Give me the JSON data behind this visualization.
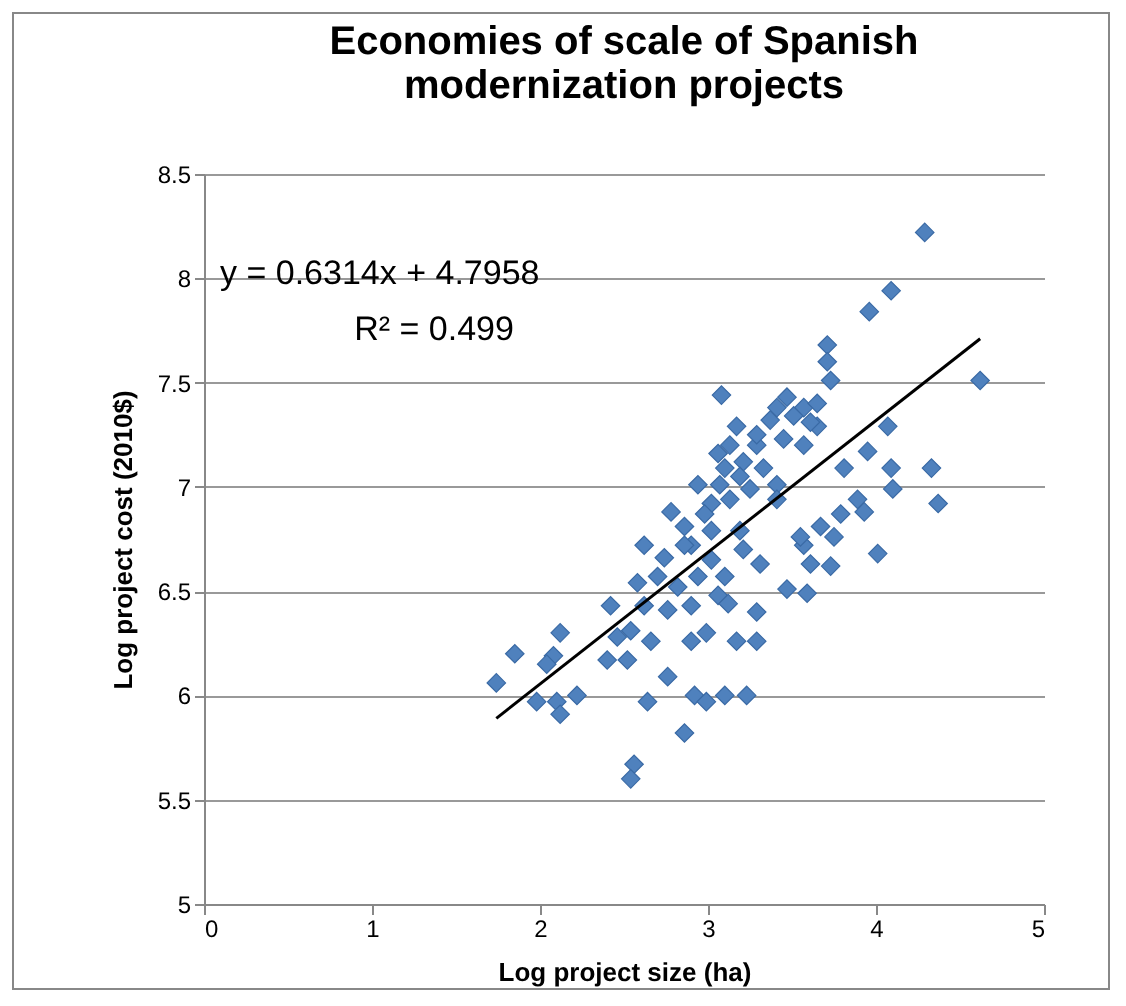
{
  "chart_data": {
    "type": "scatter",
    "title": "Economies of scale of Spanish modernization projects",
    "xlabel": "Log project size (ha)",
    "ylabel": "Log project cost (2010$)",
    "xlim": [
      0,
      5
    ],
    "xticks": [
      0,
      1,
      2,
      3,
      4,
      5
    ],
    "ylim": [
      5,
      8.5
    ],
    "yticks": [
      5,
      5.5,
      6,
      6.5,
      7,
      7.5,
      8,
      8.5
    ],
    "grid": "y",
    "marker": "diamond",
    "annotations": [
      "y = 0.6314x + 4.7958",
      "R² = 0.499"
    ],
    "series": [
      {
        "color": "#4f81bd",
        "x": [
          4.29,
          4.09,
          3.96,
          4.62,
          3.71,
          3.71,
          3.73,
          3.08,
          4.07,
          4.33,
          4.09,
          4.1,
          4.37,
          4.01,
          3.81,
          3.95,
          3.89,
          3.93,
          3.79,
          3.75,
          3.67,
          3.73,
          3.61,
          3.57,
          3.55,
          3.59,
          3.47,
          3.65,
          3.47,
          3.57,
          3.37,
          3.45,
          3.57,
          3.41,
          3.41,
          3.29,
          3.17,
          3.21,
          3.1,
          2.94,
          3.02,
          3.13,
          3.25,
          2.78,
          2.86,
          3.02,
          3.19,
          2.62,
          2.74,
          2.9,
          3.02,
          3.21,
          3.31,
          2.58,
          2.7,
          2.82,
          2.94,
          3.1,
          3.06,
          3.12,
          2.76,
          2.9,
          2.42,
          2.62,
          3.29,
          2.46,
          2.54,
          2.66,
          2.9,
          2.99,
          3.17,
          3.29,
          2.4,
          2.52,
          2.76,
          2.64,
          2.92,
          2.99,
          3.1,
          3.23,
          2.86,
          2.56,
          2.54,
          2.12,
          2.08,
          2.04,
          1.85,
          1.74,
          1.98,
          2.1,
          2.12,
          2.22,
          3.13,
          3.06,
          3.19,
          3.33,
          3.07,
          2.98,
          2.86,
          3.29,
          3.65,
          3.61,
          3.51,
          3.41
        ],
        "values": [
          8.22,
          7.94,
          7.84,
          7.51,
          7.68,
          7.6,
          7.51,
          7.44,
          7.29,
          7.09,
          7.09,
          6.99,
          6.92,
          6.68,
          7.09,
          7.17,
          6.94,
          6.88,
          6.87,
          6.76,
          6.81,
          6.62,
          6.63,
          6.72,
          6.76,
          6.49,
          6.51,
          7.29,
          7.43,
          7.38,
          7.32,
          7.23,
          7.2,
          7.01,
          6.94,
          7.2,
          7.29,
          7.12,
          7.09,
          7.01,
          6.92,
          6.94,
          6.99,
          6.88,
          6.81,
          6.79,
          6.79,
          6.72,
          6.66,
          6.72,
          6.65,
          6.7,
          6.63,
          6.54,
          6.57,
          6.52,
          6.57,
          6.57,
          6.48,
          6.44,
          6.41,
          6.43,
          6.43,
          6.43,
          6.4,
          6.28,
          6.31,
          6.26,
          6.26,
          6.3,
          6.26,
          6.26,
          6.17,
          6.17,
          6.09,
          5.97,
          6.0,
          5.97,
          6.0,
          6.0,
          5.82,
          5.67,
          5.6,
          6.3,
          6.19,
          6.15,
          6.2,
          6.06,
          5.97,
          5.97,
          5.91,
          6.0,
          7.2,
          7.16,
          7.05,
          7.09,
          7.01,
          6.87,
          6.72,
          7.25,
          7.4,
          7.31,
          7.34,
          7.38
        ]
      },
      {
        "type": "line",
        "color": "#000000",
        "marker": "none",
        "x": [
          1.74,
          4.62
        ],
        "values": [
          5.89,
          7.71
        ]
      }
    ]
  }
}
